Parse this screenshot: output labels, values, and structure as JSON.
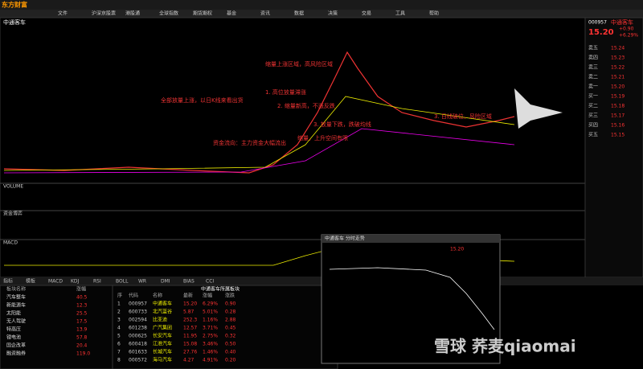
{
  "menu": [
    "东方财富",
    "文件",
    "沪深京股票",
    "港股通",
    "全球指数",
    "期货期权",
    "基金",
    "资讯",
    "数据",
    "决策",
    "交易",
    "工具",
    "帮助"
  ],
  "chart": {
    "title": "中通客车",
    "indicators": [
      "VOLUME",
      "资金博弈",
      "MACD"
    ],
    "annotations": [
      "缩量上涨区域，高风险区域",
      "1. 高位放量滞涨",
      "2. 缩量新高，不涨反跌",
      "3. 放量下跌，跌破均线",
      "全部放量上涨，以日K线来看出货",
      "资金流向：主力资金大幅流出",
      "缩量，上升空间有限",
      "3. 日线破位，风险区域"
    ],
    "tabs": [
      "指标",
      "模板",
      "MACD",
      "KDJ",
      "RSI",
      "BOLL",
      "WR",
      "DMI",
      "BIAS",
      "CCI"
    ]
  },
  "quote": {
    "code": "000957",
    "name": "中通客车",
    "price": "15.20",
    "change": "+0.90",
    "pct": "+6.29%",
    "book": [
      [
        "卖五",
        "15.24"
      ],
      [
        "卖四",
        "15.23"
      ],
      [
        "卖三",
        "15.22"
      ],
      [
        "卖二",
        "15.21"
      ],
      [
        "卖一",
        "15.20"
      ],
      [
        "买一",
        "15.19"
      ],
      [
        "买二",
        "15.18"
      ],
      [
        "买三",
        "15.17"
      ],
      [
        "买四",
        "15.16"
      ],
      [
        "买五",
        "15.15"
      ]
    ]
  },
  "sectors": {
    "header": [
      "板块名称",
      "涨幅"
    ],
    "rows": [
      [
        "汽车整车",
        "40.5"
      ],
      [
        "新能源车",
        "12.3"
      ],
      [
        "太阳能",
        "25.5"
      ],
      [
        "无人驾驶",
        "17.5"
      ],
      [
        "特高压",
        "13.9"
      ],
      [
        "锂电池",
        "57.8"
      ],
      [
        "国企改革",
        "20.4"
      ],
      [
        "融资融券",
        "119.0"
      ]
    ]
  },
  "stocks": {
    "title": "中通客车所属板块",
    "header": [
      "序",
      "代码",
      "名称",
      "最新",
      "涨幅",
      "涨跌"
    ],
    "rows": [
      [
        "1",
        "000957",
        "中通客车",
        "15.20",
        "6.29%",
        "0.90"
      ],
      [
        "2",
        "600733",
        "北汽蓝谷",
        "5.87",
        "5.01%",
        "0.28"
      ],
      [
        "3",
        "002594",
        "比亚迪",
        "252.3",
        "1.16%",
        "2.88"
      ],
      [
        "4",
        "601238",
        "广汽集团",
        "12.57",
        "3.71%",
        "0.45"
      ],
      [
        "5",
        "000625",
        "长安汽车",
        "11.95",
        "2.75%",
        "0.32"
      ],
      [
        "6",
        "600418",
        "江淮汽车",
        "15.08",
        "3.46%",
        "0.50"
      ],
      [
        "7",
        "601633",
        "长城汽车",
        "27.76",
        "1.46%",
        "0.40"
      ],
      [
        "8",
        "000572",
        "海马汽车",
        "4.27",
        "4.91%",
        "0.20"
      ]
    ]
  },
  "popup": {
    "title": "中通客车 分时走势",
    "price": "15.20"
  },
  "watermark": "雪球 荞麦qiaomai"
}
